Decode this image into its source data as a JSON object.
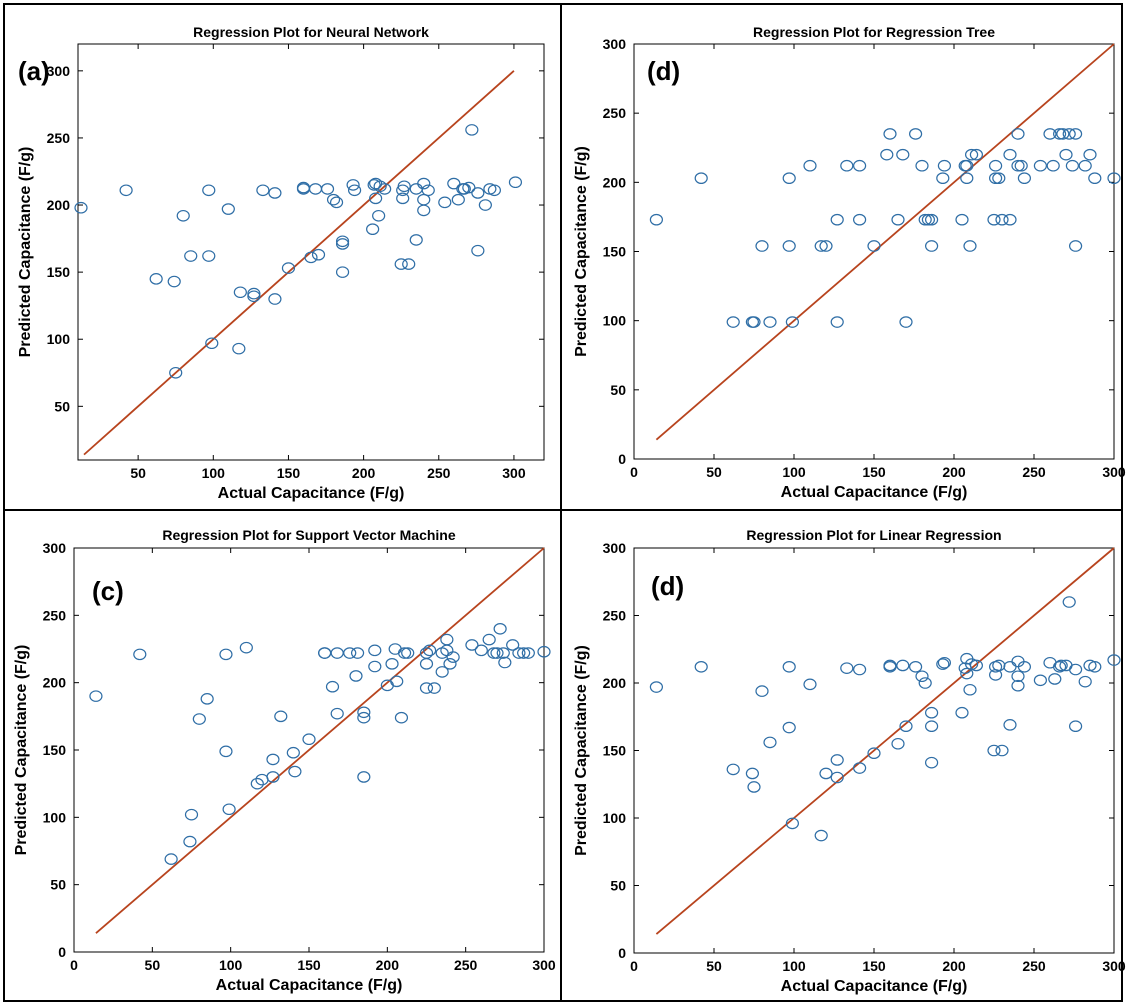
{
  "colors": {
    "points": "#2f6ea6",
    "line": "#b8441e"
  },
  "chart_data": [
    {
      "type": "scatter",
      "title": "Regression Plot for Neural Network",
      "panel_tag": "(a)",
      "xlabel": "Actual Capacitance (F/g)",
      "ylabel": "Predicted Capacitance (F/g)",
      "xlim": [
        10,
        320
      ],
      "ylim": [
        10,
        320
      ],
      "xticks": [
        50,
        100,
        150,
        200,
        250,
        300
      ],
      "yticks": [
        50,
        100,
        150,
        200,
        250,
        300
      ],
      "line": [
        [
          14,
          14
        ],
        [
          300,
          300
        ]
      ],
      "points": [
        [
          12,
          198
        ],
        [
          42,
          211
        ],
        [
          62,
          145
        ],
        [
          74,
          143
        ],
        [
          75,
          75
        ],
        [
          80,
          192
        ],
        [
          85,
          162
        ],
        [
          97,
          211
        ],
        [
          97,
          162
        ],
        [
          99,
          97
        ],
        [
          110,
          197
        ],
        [
          117,
          93
        ],
        [
          118,
          135
        ],
        [
          127,
          134
        ],
        [
          127,
          132
        ],
        [
          133,
          211
        ],
        [
          141,
          209
        ],
        [
          141,
          130
        ],
        [
          150,
          153
        ],
        [
          160,
          212
        ],
        [
          160,
          213
        ],
        [
          165,
          161
        ],
        [
          168,
          212
        ],
        [
          170,
          163
        ],
        [
          176,
          212
        ],
        [
          180,
          204
        ],
        [
          182,
          202
        ],
        [
          186,
          173
        ],
        [
          186,
          171
        ],
        [
          186,
          150
        ],
        [
          193,
          215
        ],
        [
          194,
          211
        ],
        [
          206,
          182
        ],
        [
          207,
          215
        ],
        [
          208,
          205
        ],
        [
          208,
          216
        ],
        [
          210,
          192
        ],
        [
          211,
          214
        ],
        [
          214,
          212
        ],
        [
          225,
          156
        ],
        [
          226,
          211
        ],
        [
          226,
          205
        ],
        [
          227,
          214
        ],
        [
          230,
          156
        ],
        [
          235,
          174
        ],
        [
          235,
          212
        ],
        [
          240,
          216
        ],
        [
          240,
          204
        ],
        [
          240,
          196
        ],
        [
          243,
          211
        ],
        [
          254,
          202
        ],
        [
          260,
          216
        ],
        [
          263,
          204
        ],
        [
          266,
          212
        ],
        [
          267,
          212
        ],
        [
          270,
          213
        ],
        [
          272,
          256
        ],
        [
          276,
          209
        ],
        [
          276,
          166
        ],
        [
          281,
          200
        ],
        [
          284,
          212
        ],
        [
          287,
          211
        ],
        [
          301,
          217
        ]
      ]
    },
    {
      "type": "scatter",
      "title": "Regression Plot for Regression Tree",
      "panel_tag": "(d)",
      "xlabel": "Actual Capacitance (F/g)",
      "ylabel": "Predicted Capacitance (F/g)",
      "xlim": [
        0,
        300
      ],
      "ylim": [
        0,
        300
      ],
      "xticks": [
        0,
        50,
        100,
        150,
        200,
        250,
        300
      ],
      "yticks": [
        0,
        50,
        100,
        150,
        200,
        250,
        300
      ],
      "line": [
        [
          14,
          14
        ],
        [
          300,
          300
        ]
      ],
      "points": [
        [
          14,
          173
        ],
        [
          42,
          203
        ],
        [
          62,
          99
        ],
        [
          74,
          99
        ],
        [
          75,
          99
        ],
        [
          80,
          154
        ],
        [
          85,
          99
        ],
        [
          97,
          203
        ],
        [
          97,
          154
        ],
        [
          99,
          99
        ],
        [
          110,
          212
        ],
        [
          117,
          154
        ],
        [
          120,
          154
        ],
        [
          127,
          99
        ],
        [
          127,
          173
        ],
        [
          133,
          212
        ],
        [
          141,
          212
        ],
        [
          141,
          173
        ],
        [
          150,
          154
        ],
        [
          158,
          220
        ],
        [
          160,
          235
        ],
        [
          165,
          173
        ],
        [
          168,
          220
        ],
        [
          170,
          99
        ],
        [
          176,
          235
        ],
        [
          180,
          212
        ],
        [
          182,
          173
        ],
        [
          184,
          173
        ],
        [
          186,
          173
        ],
        [
          186,
          154
        ],
        [
          193,
          203
        ],
        [
          194,
          212
        ],
        [
          205,
          173
        ],
        [
          207,
          212
        ],
        [
          208,
          203
        ],
        [
          208,
          212
        ],
        [
          210,
          154
        ],
        [
          211,
          220
        ],
        [
          214,
          220
        ],
        [
          225,
          173
        ],
        [
          226,
          212
        ],
        [
          226,
          203
        ],
        [
          228,
          203
        ],
        [
          230,
          173
        ],
        [
          235,
          173
        ],
        [
          235,
          220
        ],
        [
          240,
          235
        ],
        [
          240,
          212
        ],
        [
          242,
          212
        ],
        [
          244,
          203
        ],
        [
          254,
          212
        ],
        [
          260,
          235
        ],
        [
          262,
          212
        ],
        [
          266,
          235
        ],
        [
          268,
          235
        ],
        [
          270,
          220
        ],
        [
          272,
          235
        ],
        [
          274,
          212
        ],
        [
          276,
          235
        ],
        [
          276,
          154
        ],
        [
          282,
          212
        ],
        [
          285,
          220
        ],
        [
          288,
          203
        ],
        [
          300,
          203
        ]
      ]
    },
    {
      "type": "scatter",
      "title": "Regression Plot for Support Vector Machine",
      "panel_tag": "(c)",
      "xlabel": "Actual Capacitance (F/g)",
      "ylabel": "Predicted Capacitance (F/g)",
      "xlim": [
        0,
        300
      ],
      "ylim": [
        0,
        300
      ],
      "xticks": [
        0,
        50,
        100,
        150,
        200,
        250,
        300
      ],
      "yticks": [
        0,
        50,
        100,
        150,
        200,
        250,
        300
      ],
      "line": [
        [
          14,
          14
        ],
        [
          300,
          300
        ]
      ],
      "points": [
        [
          14,
          190
        ],
        [
          42,
          221
        ],
        [
          62,
          69
        ],
        [
          74,
          82
        ],
        [
          75,
          102
        ],
        [
          80,
          173
        ],
        [
          85,
          188
        ],
        [
          97,
          149
        ],
        [
          97,
          221
        ],
        [
          99,
          106
        ],
        [
          110,
          226
        ],
        [
          117,
          125
        ],
        [
          120,
          128
        ],
        [
          127,
          130
        ],
        [
          127,
          143
        ],
        [
          132,
          175
        ],
        [
          140,
          148
        ],
        [
          141,
          134
        ],
        [
          150,
          158
        ],
        [
          160,
          222
        ],
        [
          160,
          222
        ],
        [
          165,
          197
        ],
        [
          168,
          222
        ],
        [
          168,
          177
        ],
        [
          176,
          222
        ],
        [
          180,
          205
        ],
        [
          181,
          222
        ],
        [
          185,
          178
        ],
        [
          185,
          174
        ],
        [
          185,
          130
        ],
        [
          192,
          224
        ],
        [
          192,
          212
        ],
        [
          200,
          198
        ],
        [
          203,
          214
        ],
        [
          205,
          225
        ],
        [
          206,
          201
        ],
        [
          209,
          174
        ],
        [
          211,
          222
        ],
        [
          213,
          222
        ],
        [
          225,
          196
        ],
        [
          225,
          214
        ],
        [
          225,
          222
        ],
        [
          227,
          224
        ],
        [
          230,
          196
        ],
        [
          235,
          208
        ],
        [
          235,
          222
        ],
        [
          238,
          224
        ],
        [
          238,
          232
        ],
        [
          240,
          214
        ],
        [
          242,
          219
        ],
        [
          254,
          228
        ],
        [
          260,
          224
        ],
        [
          265,
          232
        ],
        [
          268,
          222
        ],
        [
          270,
          222
        ],
        [
          272,
          240
        ],
        [
          274,
          222
        ],
        [
          275,
          215
        ],
        [
          280,
          228
        ],
        [
          284,
          222
        ],
        [
          287,
          222
        ],
        [
          290,
          222
        ],
        [
          300,
          223
        ]
      ]
    },
    {
      "type": "scatter",
      "title": "Regression Plot for Linear Regression",
      "panel_tag": "(d)",
      "xlabel": "Actual Capacitance (F/g)",
      "ylabel": "Predicted Capacitance (F/g)",
      "xlim": [
        0,
        300
      ],
      "ylim": [
        0,
        300
      ],
      "xticks": [
        0,
        50,
        100,
        150,
        200,
        250,
        300
      ],
      "yticks": [
        0,
        50,
        100,
        150,
        200,
        250,
        300
      ],
      "line": [
        [
          14,
          14
        ],
        [
          300,
          300
        ]
      ],
      "points": [
        [
          14,
          197
        ],
        [
          42,
          212
        ],
        [
          62,
          136
        ],
        [
          74,
          133
        ],
        [
          75,
          123
        ],
        [
          80,
          194
        ],
        [
          85,
          156
        ],
        [
          97,
          212
        ],
        [
          97,
          167
        ],
        [
          99,
          96
        ],
        [
          110,
          199
        ],
        [
          117,
          87
        ],
        [
          120,
          133
        ],
        [
          127,
          143
        ],
        [
          127,
          130
        ],
        [
          133,
          211
        ],
        [
          141,
          210
        ],
        [
          141,
          137
        ],
        [
          150,
          148
        ],
        [
          160,
          212
        ],
        [
          160,
          213
        ],
        [
          165,
          155
        ],
        [
          168,
          213
        ],
        [
          170,
          168
        ],
        [
          176,
          212
        ],
        [
          180,
          205
        ],
        [
          182,
          200
        ],
        [
          186,
          178
        ],
        [
          186,
          168
        ],
        [
          186,
          141
        ],
        [
          193,
          214
        ],
        [
          194,
          215
        ],
        [
          205,
          178
        ],
        [
          207,
          211
        ],
        [
          208,
          207
        ],
        [
          208,
          218
        ],
        [
          210,
          195
        ],
        [
          211,
          214
        ],
        [
          214,
          213
        ],
        [
          225,
          150
        ],
        [
          226,
          212
        ],
        [
          226,
          206
        ],
        [
          228,
          213
        ],
        [
          230,
          150
        ],
        [
          235,
          169
        ],
        [
          235,
          212
        ],
        [
          240,
          216
        ],
        [
          240,
          205
        ],
        [
          240,
          198
        ],
        [
          244,
          212
        ],
        [
          254,
          202
        ],
        [
          260,
          215
        ],
        [
          263,
          203
        ],
        [
          266,
          212
        ],
        [
          267,
          213
        ],
        [
          270,
          213
        ],
        [
          272,
          260
        ],
        [
          276,
          210
        ],
        [
          276,
          168
        ],
        [
          282,
          201
        ],
        [
          285,
          213
        ],
        [
          288,
          212
        ],
        [
          300,
          217
        ]
      ]
    }
  ]
}
